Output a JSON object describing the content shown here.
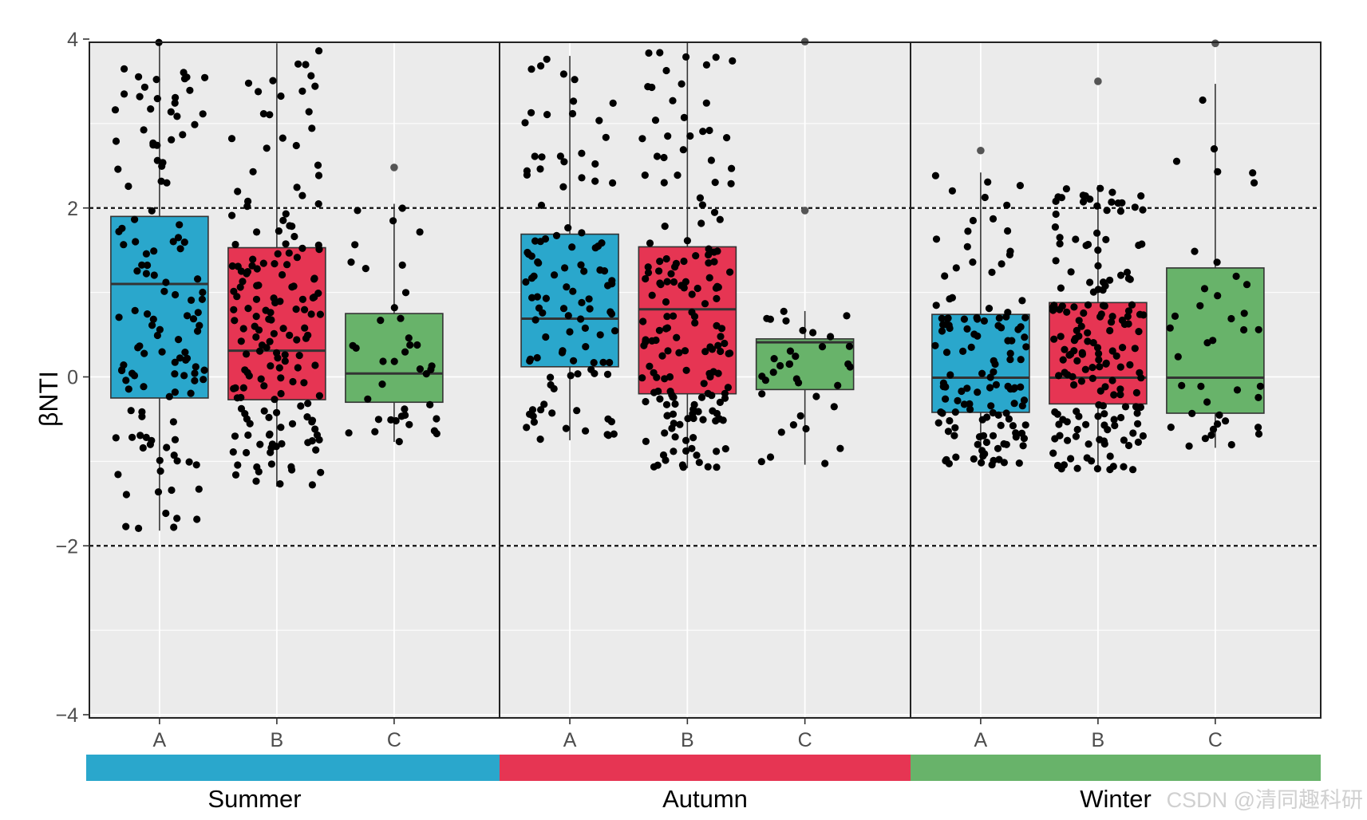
{
  "chart_data": {
    "type": "boxplot",
    "title": "",
    "ylabel": "βNTI",
    "xlabel": "",
    "ylim": [
      -4,
      4
    ],
    "yticks": [
      -4,
      -2,
      0,
      2,
      4
    ],
    "ytick_labels": [
      "−4",
      "−2",
      "0",
      "2",
      "4"
    ],
    "reference_lines": [
      2,
      -2
    ],
    "groups": [
      "A",
      "B",
      "C"
    ],
    "group_colors": {
      "A": "#2aa7cc",
      "B": "#e63553",
      "C": "#68b36a"
    },
    "panels": [
      {
        "season": "Summer",
        "strip_color": "#2aa7cc",
        "boxes": [
          {
            "group": "A",
            "q1": -0.25,
            "median": 1.1,
            "q3": 1.9,
            "whisker_low": -1.82,
            "whisker_high": 3.97,
            "n_points": 130,
            "outliers": []
          },
          {
            "group": "B",
            "q1": -0.27,
            "median": 0.31,
            "q3": 1.53,
            "whisker_low": -1.3,
            "whisker_high": 3.95,
            "n_points": 170,
            "outliers": []
          },
          {
            "group": "C",
            "q1": -0.3,
            "median": 0.04,
            "q3": 0.75,
            "whisker_low": -0.77,
            "whisker_high": 2.05,
            "n_points": 40,
            "outliers": [
              2.48
            ]
          }
        ]
      },
      {
        "season": "Autumn",
        "strip_color": "#e63553",
        "boxes": [
          {
            "group": "A",
            "q1": 0.12,
            "median": 0.69,
            "q3": 1.69,
            "whisker_low": -0.75,
            "whisker_high": 3.8,
            "n_points": 110,
            "outliers": []
          },
          {
            "group": "B",
            "q1": -0.2,
            "median": 0.8,
            "q3": 1.54,
            "whisker_low": -1.08,
            "whisker_high": 3.97,
            "n_points": 170,
            "outliers": []
          },
          {
            "group": "C",
            "q1": -0.15,
            "median": 0.41,
            "q3": 0.45,
            "whisker_low": -1.04,
            "whisker_high": 0.78,
            "n_points": 35,
            "outliers": [
              3.97,
              1.97
            ]
          }
        ]
      },
      {
        "season": "Winter",
        "strip_color": "#68b36a",
        "boxes": [
          {
            "group": "A",
            "q1": -0.42,
            "median": -0.01,
            "q3": 0.74,
            "whisker_low": -1.05,
            "whisker_high": 2.42,
            "n_points": 130,
            "outliers": [
              2.68
            ]
          },
          {
            "group": "B",
            "q1": -0.32,
            "median": -0.01,
            "q3": 0.88,
            "whisker_low": -1.1,
            "whisker_high": 2.27,
            "n_points": 170,
            "outliers": [
              3.5
            ]
          },
          {
            "group": "C",
            "q1": -0.43,
            "median": -0.01,
            "q3": 1.29,
            "whisker_low": -0.84,
            "whisker_high": 3.47,
            "n_points": 40,
            "outliers": [
              3.95
            ]
          }
        ]
      }
    ],
    "jitter_points": "black dots overlaid on each box, roughly within the whisker range"
  },
  "watermark": "CSDN @清同趣科研"
}
